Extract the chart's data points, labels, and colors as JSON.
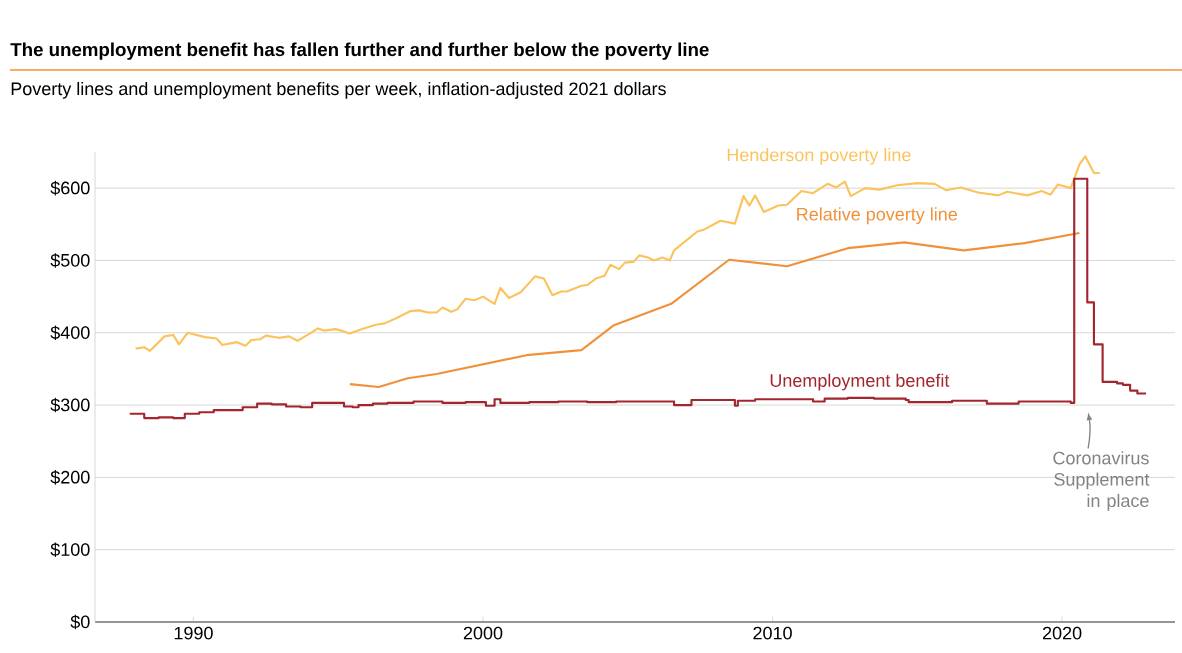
{
  "chart_data": {
    "type": "line",
    "title": "The unemployment benefit has fallen further and further below the poverty line",
    "subtitle": "Poverty lines and unemployment benefits per week, inflation-adjusted 2021 dollars",
    "xlim": [
      1986.6,
      2023.9
    ],
    "xticks": [
      1990,
      2000,
      2010,
      2020
    ],
    "ylim": [
      0,
      650
    ],
    "yticks": [
      {
        "value": 0,
        "label": "$0"
      },
      {
        "value": 100,
        "label": "$100"
      },
      {
        "value": 200,
        "label": "$200"
      },
      {
        "value": 300,
        "label": "$300"
      },
      {
        "value": 400,
        "label": "$400"
      },
      {
        "value": 500,
        "label": "$500"
      },
      {
        "value": 600,
        "label": "$600"
      }
    ],
    "grid": "y",
    "legend": false,
    "marker": "none",
    "line_style": "solid",
    "annotations": [
      "Coronavirus Supplement in place"
    ],
    "series": [
      {
        "name": "Henderson poverty line",
        "color": "#fbc35c",
        "x": [
          1988.0,
          1988.3,
          1988.5,
          1989.0,
          1989.3,
          1989.5,
          1989.8,
          1990.0,
          1990.4,
          1990.8,
          1991.0,
          1991.5,
          1991.8,
          1992.0,
          1992.3,
          1992.5,
          1992.95,
          1993.3,
          1993.6,
          1993.9,
          1994.3,
          1994.5,
          1994.9,
          1995.1,
          1995.4,
          1995.8,
          1996.3,
          1996.6,
          1997.0,
          1997.5,
          1997.8,
          1998.1,
          1998.4,
          1998.6,
          1998.9,
          1999.1,
          1999.4,
          1999.7,
          2000.0,
          2000.4,
          2000.6,
          2000.9,
          2001.3,
          2001.8,
          2002.1,
          2002.4,
          2002.7,
          2002.9,
          2003.4,
          2003.6,
          2003.9,
          2004.2,
          2004.4,
          2004.7,
          2004.9,
          2005.2,
          2005.4,
          2005.7,
          2005.9,
          2006.2,
          2006.45,
          2006.6,
          2007.4,
          2007.6,
          2008.2,
          2008.7,
          2009.0,
          2009.2,
          2009.4,
          2009.7,
          2010.2,
          2010.5,
          2011.0,
          2011.4,
          2011.9,
          2012.2,
          2012.5,
          2012.7,
          2013.2,
          2013.7,
          2014.3,
          2015.0,
          2015.6,
          2016.0,
          2016.5,
          2017.1,
          2017.8,
          2018.1,
          2018.8,
          2019.3,
          2019.6,
          2019.85,
          2020.3,
          2020.6,
          2020.8,
          2021.1,
          2021.3
        ],
        "values": [
          378,
          380,
          375,
          395,
          397,
          384,
          400,
          398,
          394,
          392,
          383,
          387,
          382,
          390,
          391,
          396,
          393,
          395,
          389,
          396,
          406,
          403,
          405,
          403,
          399,
          405,
          411,
          413,
          420,
          430,
          431,
          428,
          428,
          435,
          429,
          432,
          447,
          445,
          450,
          440,
          462,
          448,
          456,
          478,
          475,
          452,
          457,
          457,
          465,
          466,
          475,
          479,
          494,
          488,
          497,
          498,
          507,
          504,
          500,
          504,
          500,
          514,
          540,
          542,
          555,
          551,
          589,
          576,
          590,
          567,
          576,
          577,
          596,
          593,
          606,
          601,
          609,
          589,
          600,
          598,
          604,
          607,
          606,
          597,
          601,
          594,
          590,
          595,
          590,
          596,
          591,
          605,
          600,
          633,
          644,
          621,
          621
        ]
      },
      {
        "name": "Relative poverty line",
        "color": "#f0913a",
        "x": [
          1995.4,
          1996.4,
          1997.4,
          1998.4,
          2001.5,
          2003.4,
          2004.5,
          2006.5,
          2008.5,
          2010.5,
          2012.6,
          2014.55,
          2016.6,
          2018.7,
          2020.6
        ],
        "values": [
          329,
          325,
          337,
          343,
          369,
          376,
          410,
          440,
          501,
          492,
          517,
          525,
          514,
          524,
          538
        ]
      },
      {
        "name": "Unemployment benefit",
        "color": "#a3262e",
        "type": "step",
        "x": [
          1987.8,
          1988.3,
          1988.8,
          1989.3,
          1989.7,
          1990.2,
          1990.7,
          1991.6,
          1991.7,
          1992.2,
          1992.7,
          1993.2,
          1993.7,
          1994.1,
          1994.7,
          1995.2,
          1995.5,
          1995.7,
          1996.2,
          1996.7,
          1997.6,
          1998.6,
          1999.4,
          2000.1,
          2000.4,
          2000.6,
          2001.6,
          2002.6,
          2003.6,
          2004.6,
          2005.5,
          2006.6,
          2007.2,
          2008.7,
          2008.8,
          2009.4,
          2011.4,
          2011.8,
          2012.6,
          2013.5,
          2014.6,
          2014.7,
          2016.2,
          2017.4,
          2018.5,
          2020.3,
          2020.42,
          2020.87,
          2021.1,
          2021.4,
          2021.9,
          2022.1,
          2022.35,
          2022.6,
          2022.9
        ],
        "values": [
          288,
          282,
          283,
          282,
          288,
          290,
          293,
          293,
          297,
          302,
          301,
          298,
          297,
          303,
          303,
          298,
          297,
          300,
          302,
          303,
          305,
          303,
          304,
          299,
          308,
          303,
          304,
          305,
          304,
          305,
          305,
          300,
          307,
          299,
          306,
          308,
          305,
          309,
          310,
          309,
          307,
          304,
          306,
          302,
          305,
          303,
          613,
          442,
          384,
          332,
          330,
          328,
          320,
          316,
          316
        ]
      }
    ]
  }
}
